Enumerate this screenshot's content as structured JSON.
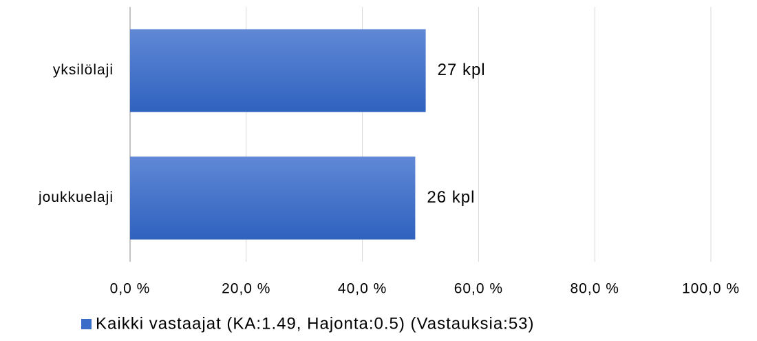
{
  "chart_data": {
    "type": "hbar",
    "categories": [
      "yksilölaji",
      "joukkuelaji"
    ],
    "series": [
      {
        "name": "Kaikki vastaajat (KA:1.49, Hajonta:0.5) (Vastauksia:53)",
        "color": "#3a6cc8",
        "values": [
          50.9,
          49.1
        ]
      }
    ],
    "counts": [
      27,
      26
    ],
    "count_labels": [
      "27 kpl",
      "26 kpl"
    ],
    "xlim": [
      0,
      100
    ],
    "xticks": [
      {
        "value": 0,
        "label": "0,0 %"
      },
      {
        "value": 20,
        "label": "20,0 %"
      },
      {
        "value": 40,
        "label": "40,0 %"
      },
      {
        "value": 60,
        "label": "60,0 %"
      },
      {
        "value": 80,
        "label": "80,0 %"
      },
      {
        "value": 100,
        "label": "100,0 %"
      }
    ],
    "grid": true,
    "legend": "bottom"
  }
}
